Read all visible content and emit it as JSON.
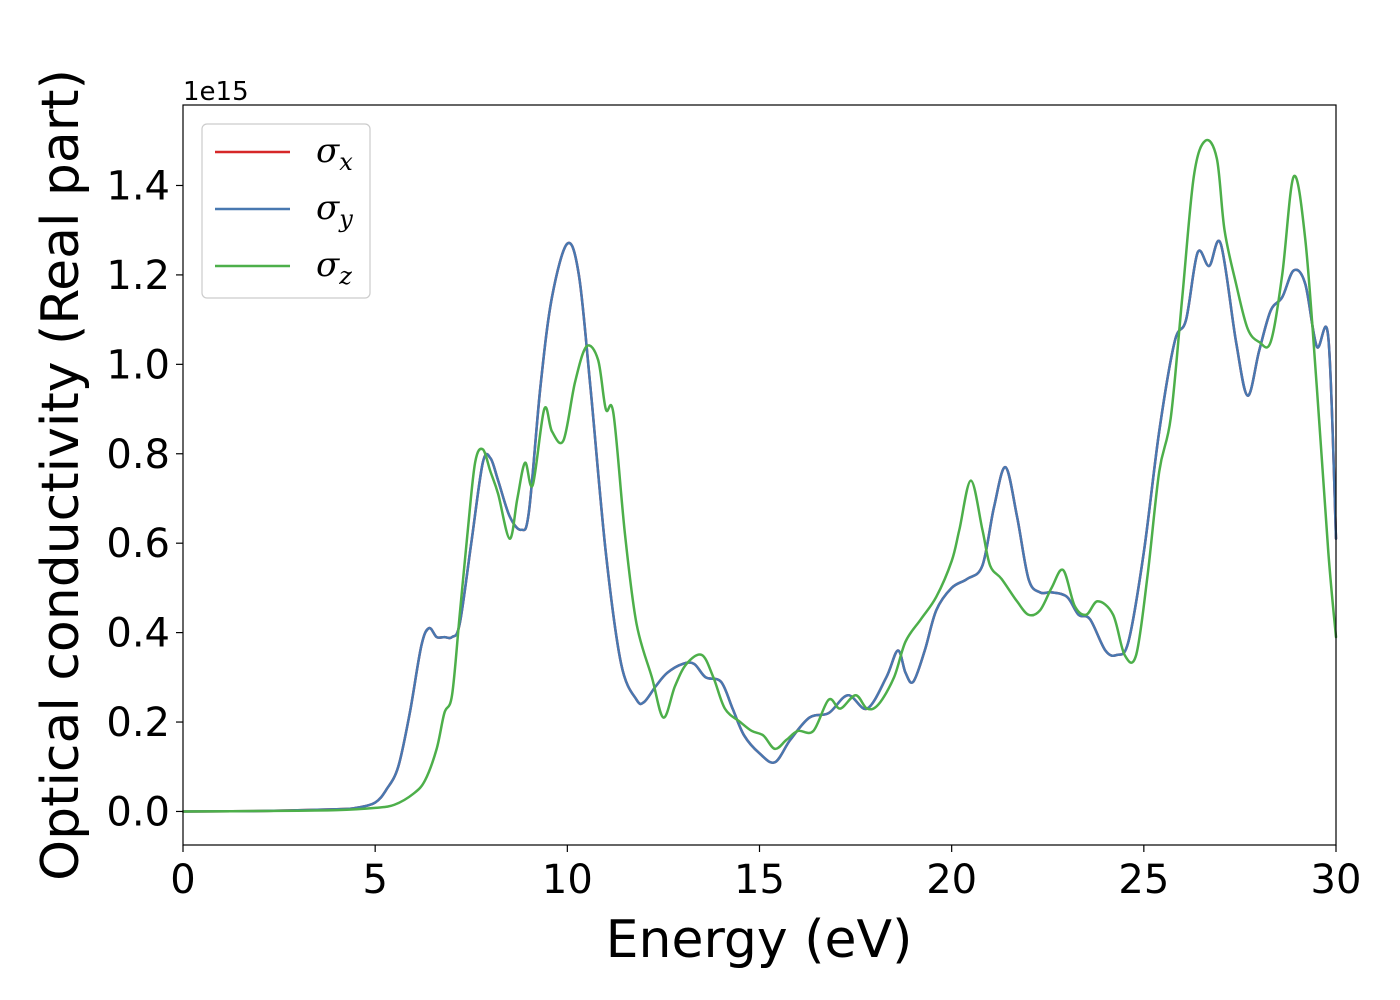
{
  "chart_data": {
    "type": "line",
    "xlabel": "Energy (eV)",
    "ylabel": "Optical conductivity (Real part)",
    "offset_text": "1e15",
    "xlim": [
      0,
      30
    ],
    "ylim": [
      -0.075,
      1.58
    ],
    "xticks": [
      0,
      5,
      10,
      15,
      20,
      25,
      30
    ],
    "xtick_labels": [
      "0",
      "5",
      "10",
      "15",
      "20",
      "25",
      "30"
    ],
    "yticks": [
      0.0,
      0.2,
      0.4,
      0.6,
      0.8,
      1.0,
      1.2,
      1.4
    ],
    "ytick_labels": [
      "0.0",
      "0.2",
      "0.4",
      "0.6",
      "0.8",
      "1.0",
      "1.2",
      "1.4"
    ],
    "grid": false,
    "legend_position": "top-left",
    "series": [
      {
        "name": "σx",
        "symbol": "σ",
        "subscript": "x",
        "color": "#d62728",
        "x": [
          0,
          2,
          4,
          4.5,
          5,
          5.3,
          5.6,
          5.9,
          6.2,
          6.4,
          6.6,
          6.8,
          7.0,
          7.2,
          7.5,
          7.8,
          8.0,
          8.2,
          8.5,
          8.8,
          9.0,
          9.3,
          9.6,
          10.0,
          10.3,
          10.6,
          11.0,
          11.4,
          11.8,
          12.0,
          12.3,
          12.6,
          13.0,
          13.3,
          13.6,
          14.0,
          14.3,
          14.6,
          15.0,
          15.4,
          15.8,
          16.3,
          16.8,
          17.3,
          17.8,
          18.3,
          18.6,
          18.8,
          19.0,
          19.3,
          19.6,
          20.0,
          20.4,
          20.8,
          21.1,
          21.4,
          21.7,
          22.0,
          22.3,
          22.6,
          23.0,
          23.3,
          23.6,
          24.0,
          24.3,
          24.6,
          25.0,
          25.4,
          25.8,
          26.1,
          26.4,
          26.7,
          27.0,
          27.4,
          27.7,
          28.0,
          28.3,
          28.6,
          28.9,
          29.2,
          29.5,
          29.8,
          30.0
        ],
        "y": [
          0,
          0.001,
          0.005,
          0.008,
          0.02,
          0.05,
          0.1,
          0.22,
          0.37,
          0.41,
          0.39,
          0.39,
          0.39,
          0.42,
          0.6,
          0.78,
          0.79,
          0.74,
          0.66,
          0.63,
          0.67,
          0.95,
          1.15,
          1.27,
          1.2,
          0.95,
          0.58,
          0.33,
          0.25,
          0.245,
          0.28,
          0.31,
          0.33,
          0.33,
          0.3,
          0.29,
          0.23,
          0.17,
          0.13,
          0.11,
          0.16,
          0.21,
          0.22,
          0.26,
          0.23,
          0.3,
          0.36,
          0.31,
          0.29,
          0.36,
          0.45,
          0.5,
          0.52,
          0.55,
          0.68,
          0.77,
          0.66,
          0.52,
          0.49,
          0.49,
          0.48,
          0.44,
          0.43,
          0.36,
          0.35,
          0.38,
          0.58,
          0.85,
          1.05,
          1.1,
          1.25,
          1.22,
          1.27,
          1.05,
          0.93,
          1.03,
          1.12,
          1.15,
          1.21,
          1.18,
          1.04,
          1.06,
          0.61
        ]
      },
      {
        "name": "σy",
        "symbol": "σ",
        "subscript": "y",
        "color": "#4878b0",
        "x": [
          0,
          2,
          4,
          4.5,
          5,
          5.3,
          5.6,
          5.9,
          6.2,
          6.4,
          6.6,
          6.8,
          7.0,
          7.2,
          7.5,
          7.8,
          8.0,
          8.2,
          8.5,
          8.8,
          9.0,
          9.3,
          9.6,
          10.0,
          10.3,
          10.6,
          11.0,
          11.4,
          11.8,
          12.0,
          12.3,
          12.6,
          13.0,
          13.3,
          13.6,
          14.0,
          14.3,
          14.6,
          15.0,
          15.4,
          15.8,
          16.3,
          16.8,
          17.3,
          17.8,
          18.3,
          18.6,
          18.8,
          19.0,
          19.3,
          19.6,
          20.0,
          20.4,
          20.8,
          21.1,
          21.4,
          21.7,
          22.0,
          22.3,
          22.6,
          23.0,
          23.3,
          23.6,
          24.0,
          24.3,
          24.6,
          25.0,
          25.4,
          25.8,
          26.1,
          26.4,
          26.7,
          27.0,
          27.4,
          27.7,
          28.0,
          28.3,
          28.6,
          28.9,
          29.2,
          29.5,
          29.8,
          30.0
        ],
        "y": [
          0,
          0.001,
          0.005,
          0.008,
          0.02,
          0.05,
          0.1,
          0.22,
          0.37,
          0.41,
          0.39,
          0.39,
          0.39,
          0.42,
          0.6,
          0.78,
          0.79,
          0.74,
          0.66,
          0.63,
          0.67,
          0.95,
          1.15,
          1.27,
          1.2,
          0.95,
          0.58,
          0.33,
          0.25,
          0.245,
          0.28,
          0.31,
          0.33,
          0.33,
          0.3,
          0.29,
          0.23,
          0.17,
          0.13,
          0.11,
          0.16,
          0.21,
          0.22,
          0.26,
          0.23,
          0.3,
          0.36,
          0.31,
          0.29,
          0.36,
          0.45,
          0.5,
          0.52,
          0.55,
          0.68,
          0.77,
          0.66,
          0.52,
          0.49,
          0.49,
          0.48,
          0.44,
          0.43,
          0.36,
          0.35,
          0.38,
          0.58,
          0.85,
          1.05,
          1.1,
          1.25,
          1.22,
          1.27,
          1.05,
          0.93,
          1.03,
          1.12,
          1.15,
          1.21,
          1.18,
          1.04,
          1.06,
          0.61
        ]
      },
      {
        "name": "σz",
        "symbol": "σ",
        "subscript": "z",
        "color": "#4daf4a",
        "x": [
          0,
          2,
          4,
          5,
          5.5,
          6.0,
          6.3,
          6.6,
          6.8,
          7.0,
          7.2,
          7.4,
          7.6,
          7.8,
          8.0,
          8.2,
          8.5,
          8.7,
          8.9,
          9.1,
          9.4,
          9.6,
          9.9,
          10.2,
          10.5,
          10.8,
          11.0,
          11.2,
          11.5,
          11.8,
          12.2,
          12.5,
          12.8,
          13.1,
          13.5,
          13.8,
          14.1,
          14.5,
          14.8,
          15.1,
          15.4,
          15.7,
          16.0,
          16.4,
          16.8,
          17.1,
          17.5,
          17.8,
          18.1,
          18.5,
          18.8,
          19.2,
          19.6,
          20.0,
          20.2,
          20.5,
          20.8,
          21.0,
          21.3,
          21.7,
          22.0,
          22.3,
          22.6,
          22.9,
          23.2,
          23.5,
          23.8,
          24.2,
          24.5,
          24.8,
          25.1,
          25.4,
          25.7,
          26.0,
          26.3,
          26.6,
          26.9,
          27.1,
          27.4,
          27.7,
          28.0,
          28.3,
          28.6,
          28.9,
          29.2,
          29.5,
          29.8,
          30.0
        ],
        "y": [
          0,
          0.001,
          0.003,
          0.008,
          0.015,
          0.04,
          0.07,
          0.14,
          0.22,
          0.26,
          0.44,
          0.62,
          0.78,
          0.81,
          0.76,
          0.71,
          0.61,
          0.7,
          0.78,
          0.73,
          0.9,
          0.85,
          0.83,
          0.96,
          1.04,
          1.01,
          0.9,
          0.89,
          0.62,
          0.42,
          0.3,
          0.21,
          0.28,
          0.33,
          0.35,
          0.3,
          0.23,
          0.2,
          0.18,
          0.17,
          0.14,
          0.16,
          0.18,
          0.18,
          0.25,
          0.23,
          0.26,
          0.23,
          0.24,
          0.3,
          0.38,
          0.43,
          0.48,
          0.56,
          0.63,
          0.74,
          0.63,
          0.55,
          0.52,
          0.47,
          0.44,
          0.45,
          0.5,
          0.54,
          0.46,
          0.44,
          0.47,
          0.44,
          0.35,
          0.35,
          0.53,
          0.76,
          0.88,
          1.15,
          1.42,
          1.5,
          1.46,
          1.3,
          1.18,
          1.08,
          1.05,
          1.05,
          1.2,
          1.42,
          1.28,
          0.95,
          0.58,
          0.39
        ]
      }
    ]
  }
}
